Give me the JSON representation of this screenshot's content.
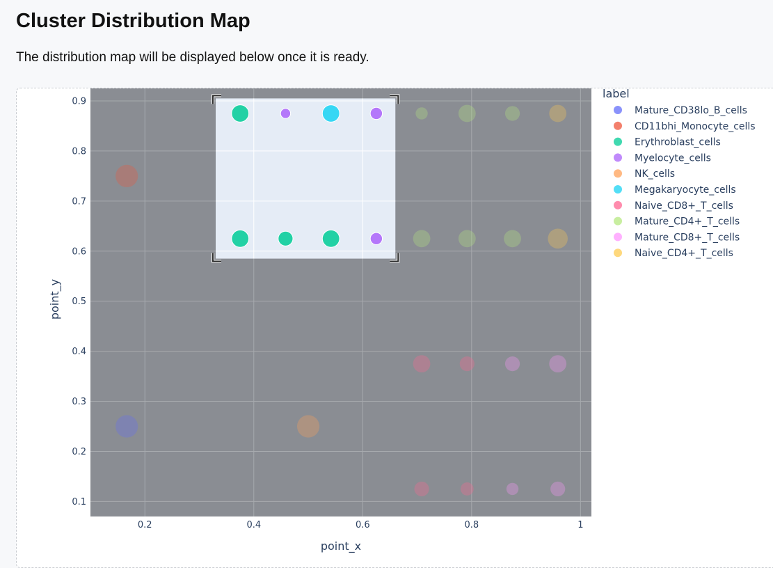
{
  "page": {
    "title": "Cluster Distribution Map",
    "subtitle": "The distribution map will be displayed below once it is ready."
  },
  "chart_data": {
    "type": "scatter",
    "xlabel": "point_x",
    "ylabel": "point_y",
    "xlim": [
      0.1,
      1.02
    ],
    "ylim": [
      0.07,
      0.925
    ],
    "x_ticks": [
      0.2,
      0.4,
      0.6,
      0.8,
      1
    ],
    "x_tick_labels": [
      "0.2",
      "0.4",
      "0.6",
      "0.8",
      "1"
    ],
    "y_ticks": [
      0.1,
      0.2,
      0.3,
      0.4,
      0.5,
      0.6,
      0.7,
      0.8,
      0.9
    ],
    "y_tick_labels": [
      "0.1",
      "0.2",
      "0.3",
      "0.4",
      "0.5",
      "0.6",
      "0.7",
      "0.8",
      "0.9"
    ],
    "grid": true,
    "legend_title": "label",
    "legend_position": "right",
    "selection_box": {
      "x0": 0.33,
      "x1": 0.66,
      "y0": 0.585,
      "y1": 0.905
    },
    "series": [
      {
        "name": "Mature_CD38lo_B_cells",
        "color": "#636efa",
        "points": [
          {
            "x": 0.1667,
            "y": 0.25,
            "size": 3
          }
        ]
      },
      {
        "name": "CD11bhi_Monocyte_cells",
        "color": "#ef553b",
        "points": [
          {
            "x": 0.1667,
            "y": 0.75,
            "size": 3
          }
        ]
      },
      {
        "name": "Erythroblast_cells",
        "color": "#00cc96",
        "points": [
          {
            "x": 0.375,
            "y": 0.875,
            "size": 2
          },
          {
            "x": 0.375,
            "y": 0.625,
            "size": 2
          },
          {
            "x": 0.4583,
            "y": 0.625,
            "size": 1.5
          },
          {
            "x": 0.5417,
            "y": 0.625,
            "size": 2
          }
        ]
      },
      {
        "name": "Myelocyte_cells",
        "color": "#ab63fa",
        "points": [
          {
            "x": 0.4583,
            "y": 0.875,
            "size": 0.6
          },
          {
            "x": 0.625,
            "y": 0.875,
            "size": 1
          },
          {
            "x": 0.625,
            "y": 0.625,
            "size": 1
          }
        ]
      },
      {
        "name": "NK_cells",
        "color": "#ffa15a",
        "points": [
          {
            "x": 0.5,
            "y": 0.25,
            "size": 3
          }
        ]
      },
      {
        "name": "Megakaryocyte_cells",
        "color": "#19d3f3",
        "points": [
          {
            "x": 0.5417,
            "y": 0.875,
            "size": 2
          }
        ]
      },
      {
        "name": "Naive_CD8+_T_cells",
        "color": "#ff6692",
        "points": [
          {
            "x": 0.7083,
            "y": 0.375,
            "size": 2
          },
          {
            "x": 0.7917,
            "y": 0.375,
            "size": 1.5
          },
          {
            "x": 0.7083,
            "y": 0.125,
            "size": 1.5
          },
          {
            "x": 0.7917,
            "y": 0.125,
            "size": 1.2
          }
        ]
      },
      {
        "name": "Mature_CD4+_T_cells",
        "color": "#b6e880",
        "points": [
          {
            "x": 0.7083,
            "y": 0.875,
            "size": 1
          },
          {
            "x": 0.7917,
            "y": 0.875,
            "size": 2
          },
          {
            "x": 0.875,
            "y": 0.875,
            "size": 1.5
          },
          {
            "x": 0.7083,
            "y": 0.625,
            "size": 2
          },
          {
            "x": 0.7917,
            "y": 0.625,
            "size": 2
          },
          {
            "x": 0.875,
            "y": 0.625,
            "size": 2
          }
        ]
      },
      {
        "name": "Mature_CD8+_T_cells",
        "color": "#ff97ff",
        "points": [
          {
            "x": 0.875,
            "y": 0.375,
            "size": 1.5
          },
          {
            "x": 0.9583,
            "y": 0.375,
            "size": 2
          },
          {
            "x": 0.875,
            "y": 0.125,
            "size": 1
          },
          {
            "x": 0.9583,
            "y": 0.125,
            "size": 1.5
          }
        ]
      },
      {
        "name": "Naive_CD4+_T_cells",
        "color": "#fecb52",
        "points": [
          {
            "x": 0.9583,
            "y": 0.875,
            "size": 2
          },
          {
            "x": 0.9583,
            "y": 0.625,
            "size": 2.5
          }
        ]
      }
    ]
  }
}
